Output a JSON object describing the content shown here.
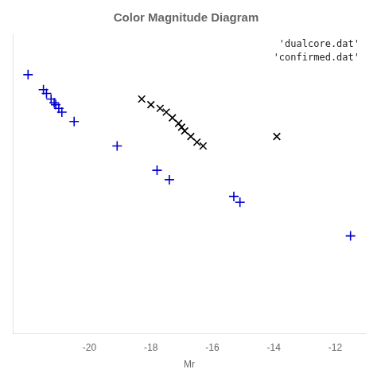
{
  "chart_data": {
    "type": "scatter",
    "title": "Color Magnitude Diagram",
    "xlabel": "Mr",
    "annotations": [
      "'dualcore.dat'",
      "'confirmed.dat'"
    ],
    "series": [
      {
        "color": "#000000",
        "marker": "x",
        "x": [
          -18.3,
          -18.0,
          -17.7,
          -17.5,
          -17.3,
          -17.1,
          -17.0,
          -16.9,
          -16.7,
          -16.5,
          -16.3,
          -13.9
        ],
        "values": [
          0.75,
          0.72,
          0.7,
          0.68,
          0.65,
          0.62,
          0.6,
          0.58,
          0.55,
          0.52,
          0.5,
          0.55
        ]
      },
      {
        "color": "#0000cc",
        "marker": "+",
        "x": [
          -22.0,
          -21.5,
          -21.4,
          -21.25,
          -21.15,
          -21.1,
          -21.0,
          -20.9,
          -20.5,
          -19.1,
          -17.8,
          -17.4,
          -15.3,
          -15.1,
          -11.5
        ],
        "values": [
          0.88,
          0.8,
          0.78,
          0.75,
          0.73,
          0.72,
          0.7,
          0.68,
          0.63,
          0.5,
          0.37,
          0.32,
          0.23,
          0.2,
          0.02
        ]
      }
    ],
    "xlim": [
      -22.5,
      -11.0
    ],
    "ylim": [
      -0.5,
      1.1
    ],
    "xticks": [
      -20,
      -18,
      -16,
      -14,
      -12
    ],
    "yticks": [],
    "grid": false,
    "tick_labels": "x"
  }
}
